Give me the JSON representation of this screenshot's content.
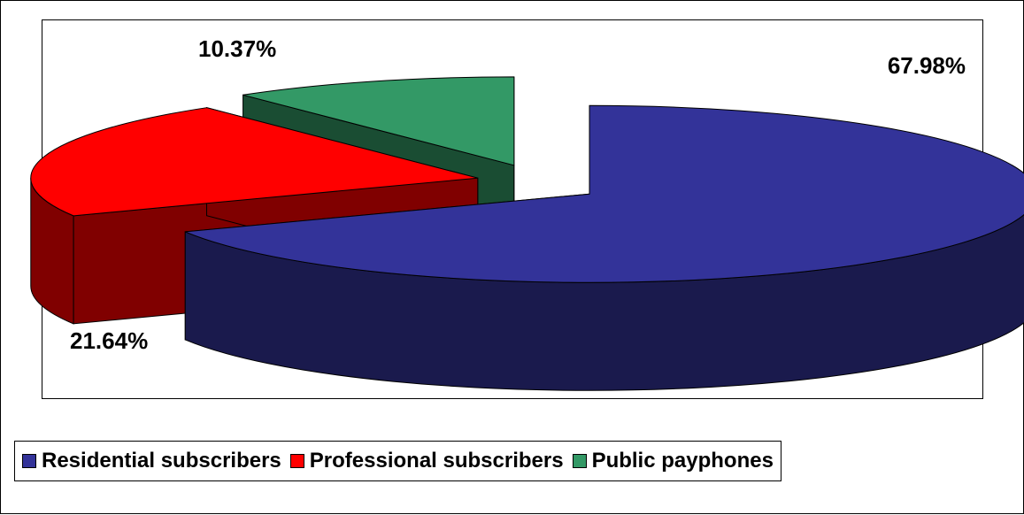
{
  "chart_data": {
    "type": "pie",
    "title": "",
    "three_d": true,
    "exploded": true,
    "labels": [
      "Residential subscribers",
      "Professional subscribers",
      "Public payphones"
    ],
    "values": [
      67.98,
      21.64,
      10.37
    ],
    "data_labels": [
      "67.98%",
      "21.64%",
      "10.37%"
    ],
    "colors": [
      "#333399",
      "#ff0000",
      "#339966"
    ],
    "legend_position": "bottom"
  }
}
